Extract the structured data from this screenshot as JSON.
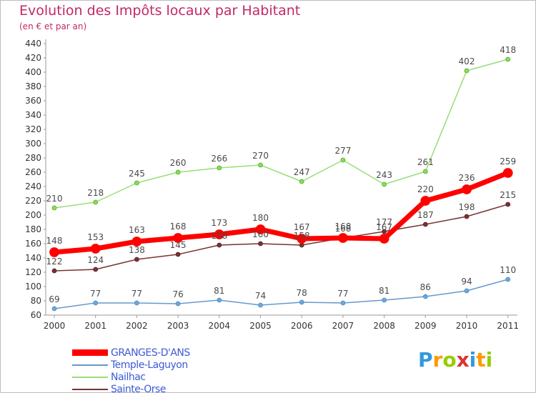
{
  "chart_data": {
    "type": "line",
    "title": "Evolution des Impôts locaux par Habitant",
    "subtitle": "(en € et par an)",
    "x": [
      "2000",
      "2001",
      "2002",
      "2003",
      "2004",
      "2005",
      "2006",
      "2007",
      "2008",
      "2009",
      "2010",
      "2011"
    ],
    "ylim": [
      60,
      440
    ],
    "yticks": [
      60,
      80,
      100,
      120,
      140,
      160,
      180,
      200,
      220,
      240,
      260,
      280,
      300,
      320,
      340,
      360,
      380,
      400,
      420,
      440
    ],
    "grid": false,
    "legend_position": "bottom-left",
    "series": [
      {
        "name": "GRANGES-D'ANS",
        "color": "#ff0000",
        "values": [
          148,
          153,
          163,
          168,
          173,
          180,
          167,
          168,
          167,
          220,
          236,
          259
        ]
      },
      {
        "name": "Temple-Laguyon",
        "color": "#6699cc",
        "values": [
          69,
          77,
          77,
          76,
          81,
          74,
          78,
          77,
          81,
          86,
          94,
          110
        ]
      },
      {
        "name": "Nailhac",
        "color": "#99dd77",
        "values": [
          210,
          218,
          245,
          260,
          266,
          270,
          247,
          277,
          243,
          261,
          402,
          418
        ]
      },
      {
        "name": "Sainte-Orse",
        "color": "#773333",
        "values": [
          122,
          124,
          138,
          145,
          158,
          160,
          158,
          168,
          177,
          187,
          198,
          215
        ]
      }
    ]
  },
  "logo": {
    "letters": [
      "P",
      "r",
      "o",
      "x",
      "i",
      "t",
      "i"
    ],
    "colors": [
      "#3399dd",
      "#ff9900",
      "#99cc00",
      "#dd3333",
      "#3399dd",
      "#ff9900",
      "#99cc00"
    ]
  }
}
